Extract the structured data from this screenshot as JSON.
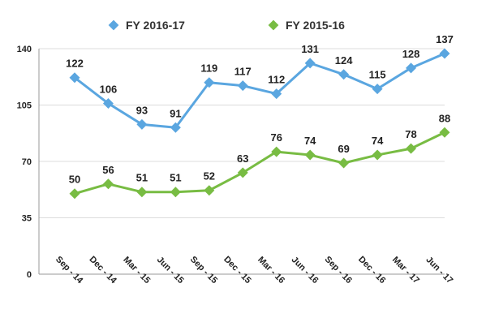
{
  "chart_data": {
    "type": "line",
    "categories": [
      "Sep - 14",
      "Dec - 14",
      "Mar - 15",
      "Jun - 15",
      "Sep - 15",
      "Dec - 15",
      "Mar - 16",
      "Jun - 16",
      "Sep - 16",
      "Dec - 16",
      "Mar - 17",
      "Jun - 17"
    ],
    "series": [
      {
        "name": "FY 2016-17",
        "color": "#5aa6e0",
        "values": [
          122,
          106,
          93,
          91,
          119,
          117,
          112,
          131,
          124,
          115,
          128,
          137
        ]
      },
      {
        "name": "FY 2015-16",
        "color": "#78bc43",
        "values": [
          50,
          56,
          51,
          51,
          52,
          63,
          76,
          74,
          69,
          74,
          78,
          88
        ]
      }
    ],
    "title": "",
    "xlabel": "",
    "ylabel": "",
    "ylim": [
      0,
      140
    ],
    "yticks": [
      0,
      35,
      70,
      105,
      140
    ],
    "grid": true,
    "legend_position": "top-center",
    "marker": "diamond",
    "data_labels": true
  }
}
